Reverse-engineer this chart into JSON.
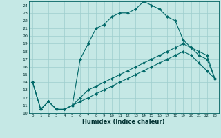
{
  "xlabel": "Humidex (Indice chaleur)",
  "ylabel": "",
  "xlim": [
    -0.5,
    23.5
  ],
  "ylim": [
    10,
    24.5
  ],
  "background_color": "#c5e8e5",
  "plot_bg_color": "#c5e8e5",
  "line_color": "#006868",
  "grid_color": "#9ecece",
  "line1_x": [
    0,
    1,
    2,
    3,
    4,
    5,
    6,
    7,
    8,
    9,
    10,
    11,
    12,
    13,
    14,
    15,
    16,
    17,
    18,
    19,
    20,
    21,
    22,
    23
  ],
  "line1_y": [
    14.0,
    10.5,
    11.5,
    10.5,
    10.5,
    11.0,
    17.0,
    19.0,
    21.0,
    21.5,
    22.5,
    23.0,
    23.0,
    23.5,
    24.5,
    24.0,
    23.5,
    22.5,
    22.0,
    19.5,
    18.5,
    18.0,
    17.5,
    14.5
  ],
  "line2_x": [
    0,
    1,
    2,
    3,
    4,
    5,
    6,
    7,
    8,
    9,
    10,
    11,
    12,
    13,
    14,
    15,
    16,
    17,
    18,
    19,
    20,
    21,
    22,
    23
  ],
  "line2_y": [
    14.0,
    10.5,
    11.5,
    10.5,
    10.5,
    11.0,
    12.0,
    13.0,
    13.5,
    14.0,
    14.5,
    15.0,
    15.5,
    16.0,
    16.5,
    17.0,
    17.5,
    18.0,
    18.5,
    19.0,
    18.5,
    17.5,
    17.0,
    14.5
  ],
  "line3_x": [
    0,
    1,
    2,
    3,
    4,
    5,
    6,
    7,
    8,
    9,
    10,
    11,
    12,
    13,
    14,
    15,
    16,
    17,
    18,
    19,
    20,
    21,
    22,
    23
  ],
  "line3_y": [
    14.0,
    10.5,
    11.5,
    10.5,
    10.5,
    11.0,
    11.5,
    12.0,
    12.5,
    13.0,
    13.5,
    14.0,
    14.5,
    15.0,
    15.5,
    16.0,
    16.5,
    17.0,
    17.5,
    18.0,
    17.5,
    16.5,
    15.5,
    14.5
  ]
}
